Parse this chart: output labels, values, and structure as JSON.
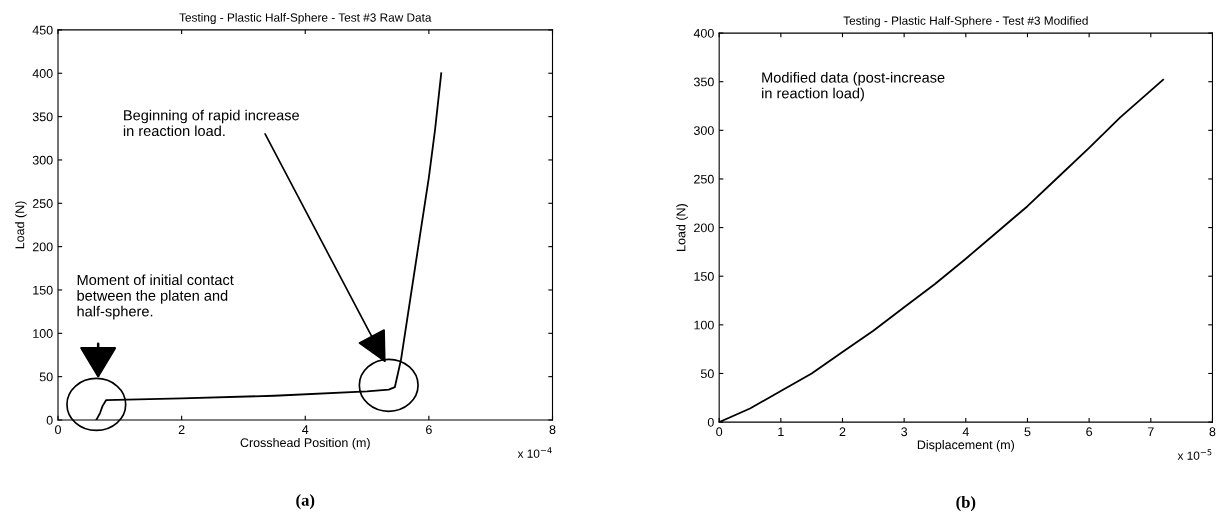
{
  "chart_data": [
    {
      "type": "line",
      "title": "Testing - Plastic Half-Sphere - Test #3 Raw Data",
      "xlabel": "Crosshead Position (m)",
      "ylabel": "Load (N)",
      "x": [
        0.62,
        0.68,
        0.72,
        0.78,
        2.0,
        3.5,
        5.0,
        5.35,
        5.45,
        5.55,
        5.7,
        5.85,
        6.0,
        6.1,
        6.2
      ],
      "series": [
        {
          "color": "#000000",
          "values": [
            0,
            8,
            16,
            23,
            25,
            28,
            33,
            35,
            38,
            70,
            140,
            210,
            280,
            335,
            400
          ]
        }
      ],
      "xlim": [
        0,
        8
      ],
      "xticks": [
        0,
        2,
        4,
        6,
        8
      ],
      "ylim": [
        0,
        450
      ],
      "yticks": [
        0,
        50,
        100,
        150,
        200,
        250,
        300,
        350,
        400,
        450
      ],
      "grid": false,
      "legend": false,
      "marker": "none",
      "line_style": "solid",
      "annotations": [
        "Moment of initial contact\nbetween the platen and\nhalf-sphere.",
        "Beginning of rapid increase\nin reaction load.",
        "x 10$^{−4}$",
        "(a)"
      ]
    },
    {
      "type": "line",
      "title": "Testing - Plastic Half-Sphere - Test #3 Modified",
      "xlabel": "Displacement (m)",
      "ylabel": "Load (N)",
      "x": [
        0,
        0.5,
        1,
        1.5,
        2,
        2.5,
        3,
        3.5,
        4,
        4.5,
        5,
        5.5,
        6,
        6.5,
        7.2
      ],
      "series": [
        {
          "color": "#000000",
          "values": [
            0,
            14,
            32,
            50,
            72,
            94,
            118,
            142,
            168,
            195,
            222,
            252,
            282,
            313,
            352
          ]
        }
      ],
      "xlim": [
        0,
        8
      ],
      "xticks": [
        0,
        1,
        2,
        3,
        4,
        5,
        6,
        7,
        8
      ],
      "ylim": [
        0,
        400
      ],
      "yticks": [
        0,
        50,
        100,
        150,
        200,
        250,
        300,
        350,
        400
      ],
      "grid": false,
      "legend": false,
      "marker": "none",
      "line_style": "solid",
      "annotations": [
        "Modified data (post-increase\nin reaction load)",
        "x 10$^{−5}$",
        "(b)"
      ]
    }
  ]
}
